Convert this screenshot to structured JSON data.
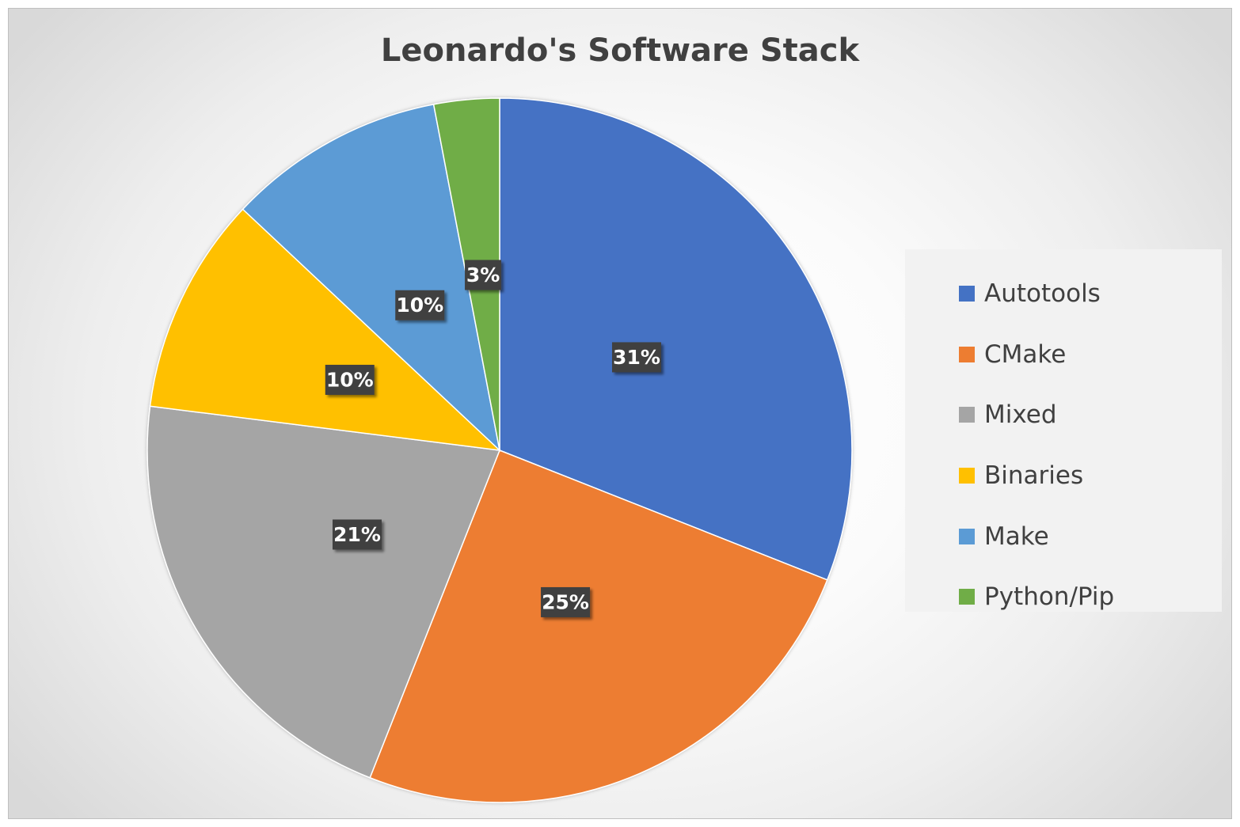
{
  "chart_data": {
    "type": "pie",
    "title": "Leonardo's Software Stack",
    "legend_position": "right",
    "slices": [
      {
        "name": "Autotools",
        "value": 31,
        "label": "31%",
        "color": "#4472C4"
      },
      {
        "name": "CMake",
        "value": 25,
        "label": "25%",
        "color": "#ED7D31"
      },
      {
        "name": "Mixed",
        "value": 21,
        "label": "21%",
        "color": "#A5A5A5"
      },
      {
        "name": "Binaries",
        "value": 10,
        "label": "10%",
        "color": "#FFC000"
      },
      {
        "name": "Make",
        "value": 10,
        "label": "10%",
        "color": "#5B9BD5"
      },
      {
        "name": "Python/Pip",
        "value": 3,
        "label": "3%",
        "color": "#70AD47"
      }
    ]
  }
}
